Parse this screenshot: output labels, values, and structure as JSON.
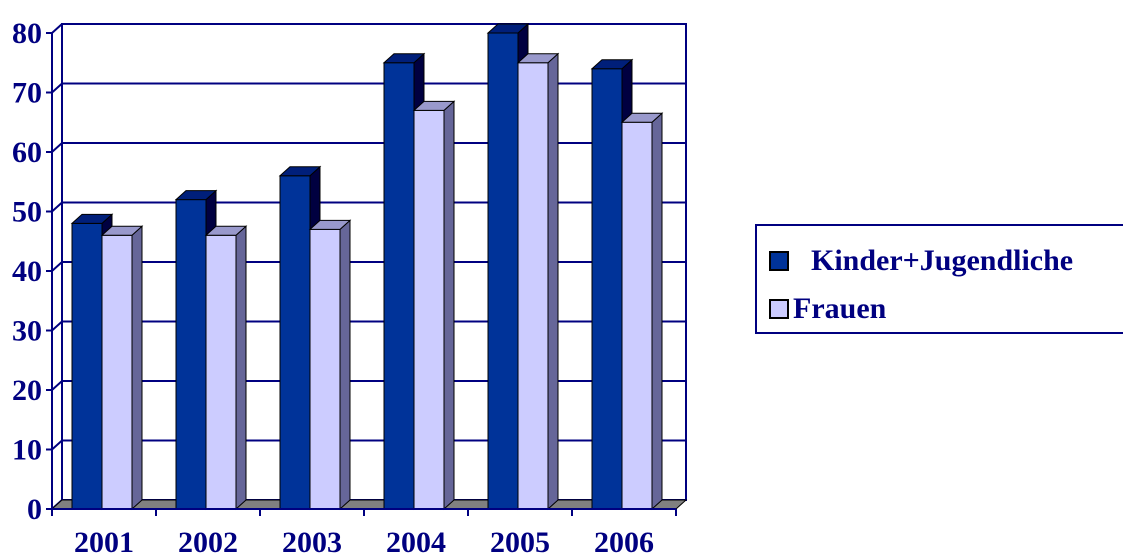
{
  "chart_data": {
    "type": "bar",
    "categories": [
      "2001",
      "2002",
      "2003",
      "2004",
      "2005",
      "2006"
    ],
    "series": [
      {
        "name": "Kinder+Jugendliche",
        "values": [
          48,
          52,
          56,
          75,
          80,
          74
        ],
        "color": "#003399"
      },
      {
        "name": "Frauen",
        "values": [
          46,
          46,
          47,
          67,
          75,
          65
        ],
        "color": "#CCCCFF"
      }
    ],
    "ylim": [
      0,
      80
    ],
    "yticks": [
      "0",
      "10",
      "20",
      "30",
      "40",
      "50",
      "60",
      "70",
      "80"
    ],
    "grid": true,
    "legend_position": "right",
    "style": "3d-clustered-columns"
  }
}
